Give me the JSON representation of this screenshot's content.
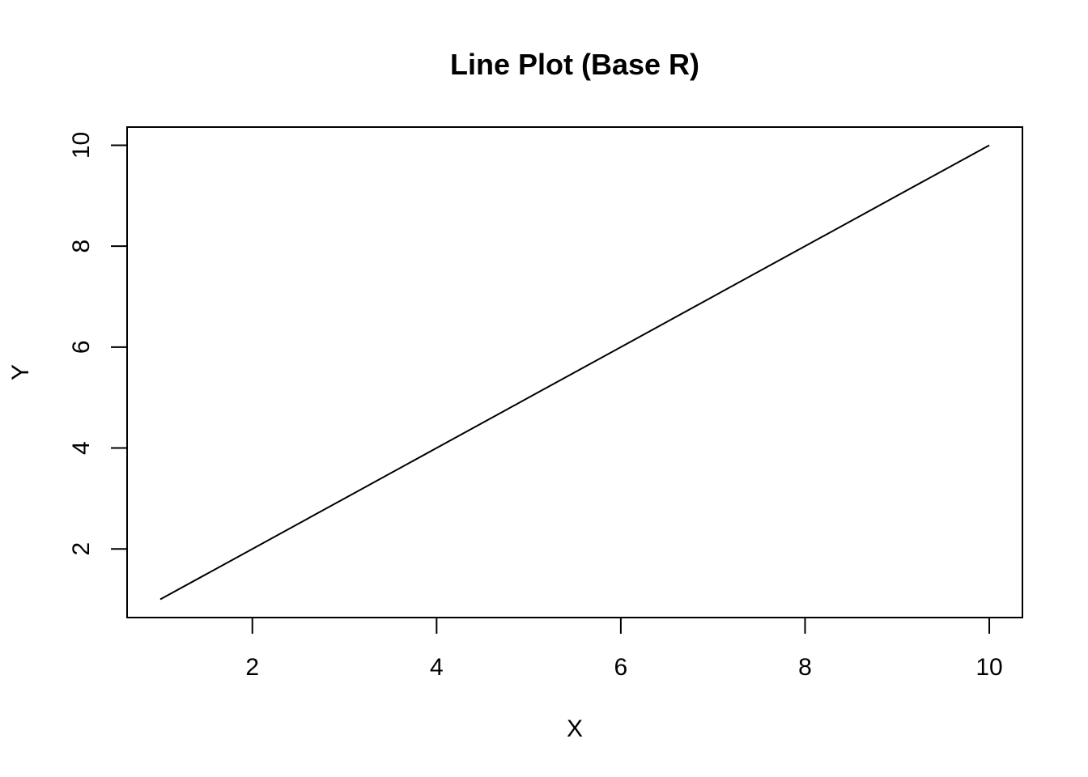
{
  "chart_data": {
    "type": "line",
    "title": "Line Plot (Base R)",
    "xlabel": "X",
    "ylabel": "Y",
    "x": [
      1,
      2,
      3,
      4,
      5,
      6,
      7,
      8,
      9,
      10
    ],
    "series": [
      {
        "values": [
          1,
          2,
          3,
          4,
          5,
          6,
          7,
          8,
          9,
          10
        ],
        "color": "#000000"
      }
    ],
    "xlim": [
      0.64,
      10.36
    ],
    "ylim": [
      0.64,
      10.36
    ],
    "xticks": [
      2,
      4,
      6,
      8,
      10
    ],
    "yticks": [
      2,
      4,
      6,
      8,
      10
    ],
    "grid": false,
    "legend": "none"
  }
}
